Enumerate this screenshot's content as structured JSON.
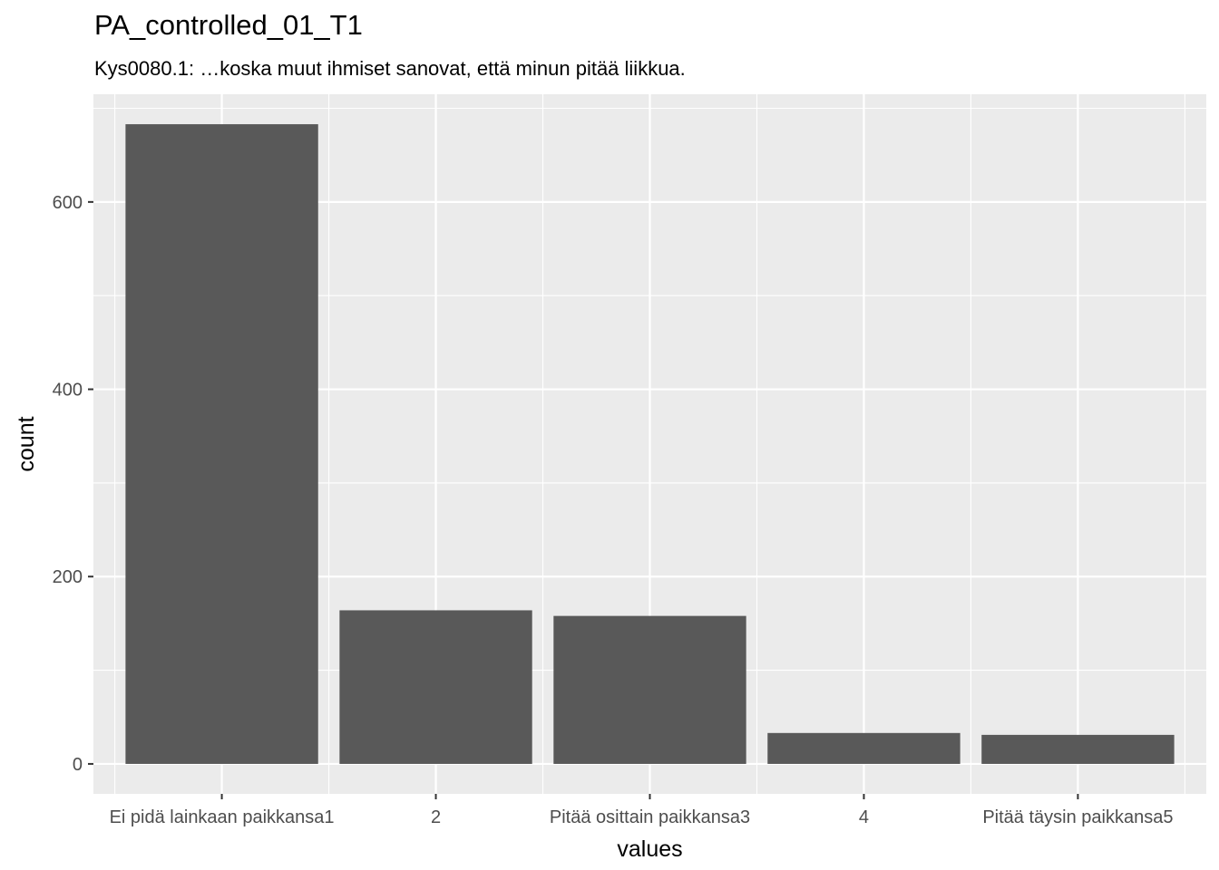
{
  "chart_data": {
    "type": "bar",
    "title": "PA_controlled_01_T1",
    "subtitle": "Kys0080.1: …koska muut ihmiset sanovat, että minun pitää liikkua.",
    "xlabel": "values",
    "ylabel": "count",
    "categories": [
      "Ei pidä lainkaan paikkansa1",
      "2",
      "Pitää osittain paikkansa3",
      "4",
      "Pitää täysin paikkansa5"
    ],
    "values": [
      683,
      164,
      158,
      33,
      31
    ],
    "ylim": [
      -32,
      715
    ],
    "yticks": [
      0,
      200,
      400,
      600
    ],
    "grid": true,
    "panel_background": "#ebebeb",
    "bar_color": "#595959",
    "grid_color": "#ffffff"
  }
}
